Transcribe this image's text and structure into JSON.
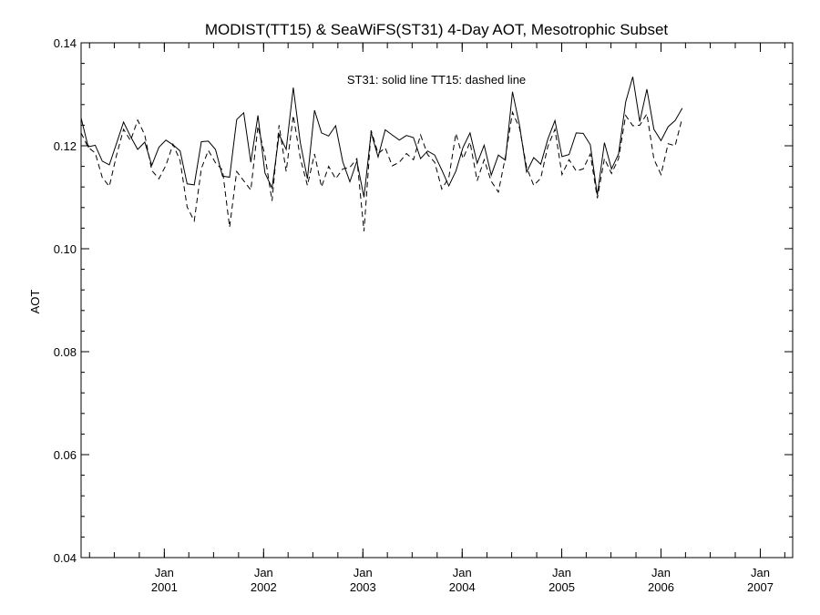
{
  "chart_data": {
    "type": "line",
    "title": "MODIST(TT15) & SeaWiFS(ST31) 4-Day AOT, Mesotrophic Subset",
    "ylabel": "AOT",
    "xlabel": "",
    "annotation": "ST31: solid line   TT15: dashed line",
    "ylim": [
      0.04,
      0.14
    ],
    "yticks": [
      0.04,
      0.06,
      0.08,
      0.1,
      0.12,
      0.14
    ],
    "ytick_labels": [
      "0.04",
      "0.06",
      "0.08",
      "0.10",
      "0.12",
      "0.14"
    ],
    "xlim": [
      "2000-03-01",
      "2007-04-30"
    ],
    "xticks": [
      "2001-01-01",
      "2002-01-01",
      "2003-01-01",
      "2004-01-01",
      "2005-01-01",
      "2006-01-01",
      "2007-01-01"
    ],
    "xtick_labels": [
      {
        "month": "Jan",
        "year": "2001"
      },
      {
        "month": "Jan",
        "year": "2002"
      },
      {
        "month": "Jan",
        "year": "2003"
      },
      {
        "month": "Jan",
        "year": "2004"
      },
      {
        "month": "Jan",
        "year": "2005"
      },
      {
        "month": "Jan",
        "year": "2006"
      },
      {
        "month": "Jan",
        "year": "2007"
      }
    ],
    "grid": false,
    "series": [
      {
        "name": "ST31",
        "style": "solid",
        "color": "#000000",
        "points": [
          [
            "2000-03-01",
            0.1254
          ],
          [
            "2000-03-27",
            0.1198
          ],
          [
            "2000-04-22",
            0.1201
          ],
          [
            "2000-05-18",
            0.117
          ],
          [
            "2000-06-13",
            0.1163
          ],
          [
            "2000-07-09",
            0.1204
          ],
          [
            "2000-08-04",
            0.1246
          ],
          [
            "2000-08-30",
            0.1218
          ],
          [
            "2000-09-25",
            0.1193
          ],
          [
            "2000-10-21",
            0.1207
          ],
          [
            "2000-11-16",
            0.1162
          ],
          [
            "2000-12-12",
            0.1197
          ],
          [
            "2001-01-07",
            0.1211
          ],
          [
            "2001-02-02",
            0.1202
          ],
          [
            "2001-02-28",
            0.119
          ],
          [
            "2001-03-26",
            0.1126
          ],
          [
            "2001-04-21",
            0.1124
          ],
          [
            "2001-05-17",
            0.1208
          ],
          [
            "2001-06-12",
            0.1209
          ],
          [
            "2001-07-08",
            0.1193
          ],
          [
            "2001-08-03",
            0.1141
          ],
          [
            "2001-08-29",
            0.1139
          ],
          [
            "2001-09-24",
            0.1251
          ],
          [
            "2001-10-20",
            0.1264
          ],
          [
            "2001-11-15",
            0.1168
          ],
          [
            "2001-12-11",
            0.1259
          ],
          [
            "2002-01-06",
            0.1147
          ],
          [
            "2002-02-01",
            0.1118
          ],
          [
            "2002-02-27",
            0.1222
          ],
          [
            "2002-03-25",
            0.1193
          ],
          [
            "2002-04-20",
            0.1313
          ],
          [
            "2002-05-16",
            0.1206
          ],
          [
            "2002-06-11",
            0.1136
          ],
          [
            "2002-07-07",
            0.1269
          ],
          [
            "2002-08-02",
            0.1225
          ],
          [
            "2002-08-28",
            0.1219
          ],
          [
            "2002-09-23",
            0.1239
          ],
          [
            "2002-10-19",
            0.1169
          ],
          [
            "2002-11-14",
            0.113
          ],
          [
            "2002-12-10",
            0.117
          ],
          [
            "2003-01-05",
            0.11
          ],
          [
            "2003-01-31",
            0.1226
          ],
          [
            "2003-02-26",
            0.1178
          ],
          [
            "2003-03-24",
            0.1231
          ],
          [
            "2003-04-19",
            0.1221
          ],
          [
            "2003-05-15",
            0.1211
          ],
          [
            "2003-06-10",
            0.122
          ],
          [
            "2003-07-06",
            0.1216
          ],
          [
            "2003-08-01",
            0.1175
          ],
          [
            "2003-08-27",
            0.119
          ],
          [
            "2003-09-22",
            0.1182
          ],
          [
            "2003-10-18",
            0.1153
          ],
          [
            "2003-11-13",
            0.1122
          ],
          [
            "2003-12-09",
            0.1151
          ],
          [
            "2004-01-04",
            0.1197
          ],
          [
            "2004-01-30",
            0.1225
          ],
          [
            "2004-02-25",
            0.1166
          ],
          [
            "2004-03-22",
            0.1201
          ],
          [
            "2004-04-17",
            0.1143
          ],
          [
            "2004-05-13",
            0.1182
          ],
          [
            "2004-06-08",
            0.1172
          ],
          [
            "2004-07-04",
            0.1305
          ],
          [
            "2004-07-30",
            0.1239
          ],
          [
            "2004-08-25",
            0.1149
          ],
          [
            "2004-09-20",
            0.1177
          ],
          [
            "2004-10-16",
            0.1164
          ],
          [
            "2004-11-11",
            0.1213
          ],
          [
            "2004-12-07",
            0.1249
          ],
          [
            "2005-01-02",
            0.1179
          ],
          [
            "2005-01-28",
            0.1183
          ],
          [
            "2005-02-23",
            0.1225
          ],
          [
            "2005-03-21",
            0.1224
          ],
          [
            "2005-04-16",
            0.1202
          ],
          [
            "2005-05-12",
            0.1104
          ],
          [
            "2005-06-07",
            0.1206
          ],
          [
            "2005-07-03",
            0.1155
          ],
          [
            "2005-07-29",
            0.1184
          ],
          [
            "2005-08-24",
            0.1285
          ],
          [
            "2005-09-19",
            0.1334
          ],
          [
            "2005-10-15",
            0.1247
          ],
          [
            "2005-11-10",
            0.131
          ],
          [
            "2005-12-06",
            0.1232
          ],
          [
            "2006-01-01",
            0.121
          ],
          [
            "2006-01-27",
            0.1237
          ],
          [
            "2006-02-22",
            0.1249
          ],
          [
            "2006-03-20",
            0.1273
          ]
        ]
      },
      {
        "name": "TT15",
        "style": "dashed",
        "color": "#000000",
        "points": [
          [
            "2000-03-01",
            0.1225
          ],
          [
            "2000-03-27",
            0.1197
          ],
          [
            "2000-04-22",
            0.1186
          ],
          [
            "2000-05-18",
            0.1138
          ],
          [
            "2000-06-13",
            0.1121
          ],
          [
            "2000-07-09",
            0.1181
          ],
          [
            "2000-08-04",
            0.1232
          ],
          [
            "2000-08-30",
            0.121
          ],
          [
            "2000-09-25",
            0.125
          ],
          [
            "2000-10-21",
            0.1221
          ],
          [
            "2000-11-16",
            0.1152
          ],
          [
            "2000-12-12",
            0.1136
          ],
          [
            "2001-01-07",
            0.1162
          ],
          [
            "2001-02-02",
            0.1203
          ],
          [
            "2001-02-28",
            0.1171
          ],
          [
            "2001-03-26",
            0.1081
          ],
          [
            "2001-04-21",
            0.1054
          ],
          [
            "2001-05-17",
            0.1156
          ],
          [
            "2001-06-12",
            0.1191
          ],
          [
            "2001-07-08",
            0.1167
          ],
          [
            "2001-08-03",
            0.1153
          ],
          [
            "2001-08-29",
            0.1042
          ],
          [
            "2001-09-24",
            0.115
          ],
          [
            "2001-10-20",
            0.1132
          ],
          [
            "2001-11-15",
            0.1114
          ],
          [
            "2001-12-11",
            0.1238
          ],
          [
            "2002-01-06",
            0.1181
          ],
          [
            "2002-02-01",
            0.1093
          ],
          [
            "2002-02-27",
            0.124
          ],
          [
            "2002-03-25",
            0.115
          ],
          [
            "2002-04-20",
            0.1259
          ],
          [
            "2002-05-16",
            0.1176
          ],
          [
            "2002-06-11",
            0.1123
          ],
          [
            "2002-07-07",
            0.1184
          ],
          [
            "2002-08-02",
            0.112
          ],
          [
            "2002-08-28",
            0.116
          ],
          [
            "2002-09-23",
            0.1136
          ],
          [
            "2002-10-19",
            0.1155
          ],
          [
            "2002-11-14",
            0.1158
          ],
          [
            "2002-12-10",
            0.1175
          ],
          [
            "2003-01-05",
            0.1034
          ],
          [
            "2003-01-31",
            0.123
          ],
          [
            "2003-02-26",
            0.1185
          ],
          [
            "2003-03-24",
            0.1196
          ],
          [
            "2003-04-19",
            0.1161
          ],
          [
            "2003-05-15",
            0.1168
          ],
          [
            "2003-06-10",
            0.1185
          ],
          [
            "2003-07-06",
            0.1173
          ],
          [
            "2003-08-01",
            0.1221
          ],
          [
            "2003-08-27",
            0.1183
          ],
          [
            "2003-09-22",
            0.1168
          ],
          [
            "2003-10-18",
            0.1116
          ],
          [
            "2003-11-13",
            0.1138
          ],
          [
            "2003-12-09",
            0.1224
          ],
          [
            "2004-01-04",
            0.1175
          ],
          [
            "2004-01-30",
            0.1207
          ],
          [
            "2004-02-25",
            0.1132
          ],
          [
            "2004-03-22",
            0.1173
          ],
          [
            "2004-04-17",
            0.1131
          ],
          [
            "2004-05-13",
            0.111
          ],
          [
            "2004-06-08",
            0.1178
          ],
          [
            "2004-07-04",
            0.1265
          ],
          [
            "2004-07-30",
            0.1234
          ],
          [
            "2004-08-25",
            0.1158
          ],
          [
            "2004-09-20",
            0.1123
          ],
          [
            "2004-10-16",
            0.1137
          ],
          [
            "2004-11-11",
            0.1199
          ],
          [
            "2004-12-07",
            0.1232
          ],
          [
            "2005-01-02",
            0.1144
          ],
          [
            "2005-01-28",
            0.1173
          ],
          [
            "2005-02-23",
            0.1151
          ],
          [
            "2005-03-21",
            0.1155
          ],
          [
            "2005-04-16",
            0.1184
          ],
          [
            "2005-05-12",
            0.1098
          ],
          [
            "2005-06-07",
            0.1175
          ],
          [
            "2005-07-03",
            0.1146
          ],
          [
            "2005-07-29",
            0.1175
          ],
          [
            "2005-08-24",
            0.1259
          ],
          [
            "2005-09-19",
            0.1239
          ],
          [
            "2005-10-15",
            0.124
          ],
          [
            "2005-11-10",
            0.1262
          ],
          [
            "2005-12-06",
            0.1174
          ],
          [
            "2006-01-01",
            0.1144
          ],
          [
            "2006-01-27",
            0.1204
          ],
          [
            "2006-02-22",
            0.12
          ],
          [
            "2006-03-20",
            0.1254
          ]
        ]
      }
    ]
  }
}
